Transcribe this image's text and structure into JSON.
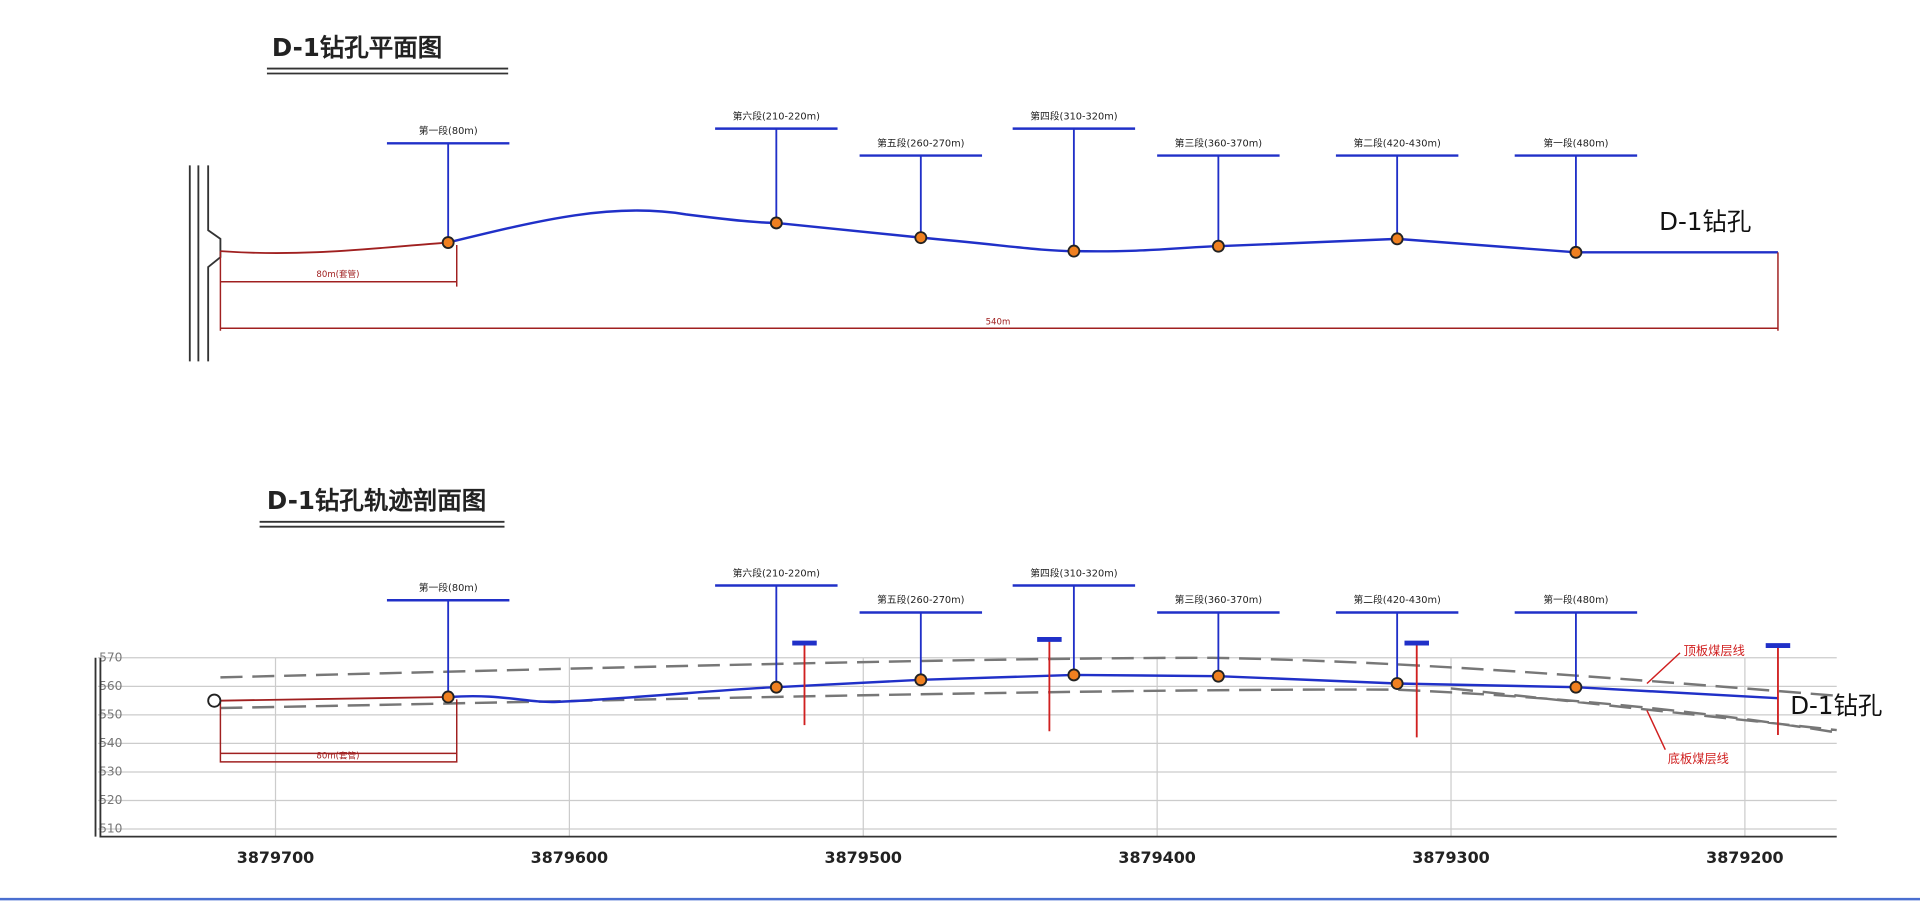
{
  "plan": {
    "title": "D-1钻孔平面图",
    "borehole_label": "D-1钻孔",
    "segments": [
      "第一段(80m)",
      "第六段(210-220m)",
      "第五段(260-270m)",
      "第四段(310-320m)",
      "第三段(360-370m)",
      "第二段(420-430m)",
      "第一段(480m)"
    ],
    "dimensions": [
      "80m(套管)",
      "540m"
    ]
  },
  "profile": {
    "title": "D-1钻孔轨迹剖面图",
    "borehole_label": "D-1钻孔",
    "segments": [
      "第一段(80m)",
      "第六段(210-220m)",
      "第五段(260-270m)",
      "第四段(310-320m)",
      "第三段(360-370m)",
      "第二段(420-430m)",
      "第一段(480m)"
    ],
    "dimension": "80m(套管)",
    "roof_label": "顶板煤层线",
    "floor_label": "底板煤层线",
    "y_axis": [
      "570",
      "560",
      "550",
      "540",
      "530",
      "520",
      "510"
    ],
    "x_axis": [
      "3879700",
      "3879600",
      "3879500",
      "3879400",
      "3879300",
      "3879200"
    ]
  }
}
